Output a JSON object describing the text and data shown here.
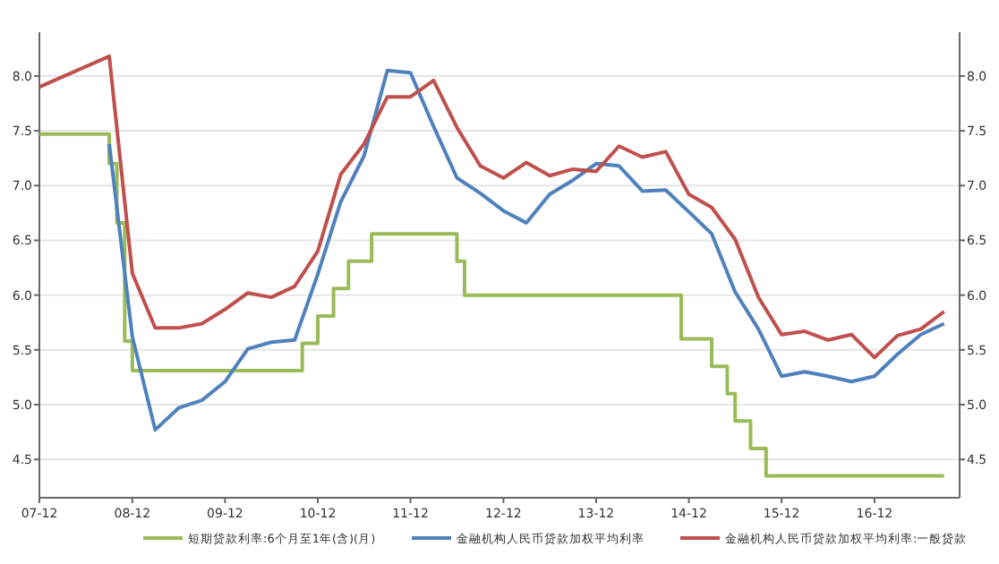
{
  "chart_data": {
    "type": "line",
    "x": [
      "2007-12",
      "2008-09",
      "2008-10",
      "2008-11",
      "2008-12",
      "2010-10",
      "2010-12",
      "2011-02",
      "2011-04",
      "2011-07",
      "2012-06",
      "2012-07",
      "2014-11",
      "2015-03",
      "2015-05",
      "2015-06",
      "2015-08",
      "2015-10",
      "2017-09"
    ],
    "series": [
      {
        "name": "短期贷款利率:6个月至1年(含)(月)",
        "color": "#9bbb59",
        "type": "step",
        "values": [
          7.47,
          7.2,
          6.66,
          5.58,
          5.31,
          5.56,
          5.81,
          6.06,
          6.31,
          6.56,
          6.31,
          6.0,
          5.6,
          5.35,
          5.1,
          4.85,
          4.6,
          4.35,
          4.35
        ]
      },
      {
        "name": "金融机构人民币贷款加权平均利率",
        "color": "#4f81bd",
        "x": [
          "2008-09",
          "2008-12",
          "2009-03",
          "2009-06",
          "2009-09",
          "2009-12",
          "2010-03",
          "2010-06",
          "2010-09",
          "2010-12",
          "2011-03",
          "2011-06",
          "2011-09",
          "2011-12",
          "2012-03",
          "2012-06",
          "2012-09",
          "2012-12",
          "2013-03",
          "2013-06",
          "2013-09",
          "2013-12",
          "2014-03",
          "2014-06",
          "2014-09",
          "2014-12",
          "2015-03",
          "2015-06",
          "2015-09",
          "2015-12",
          "2016-03",
          "2016-06",
          "2016-09",
          "2016-12",
          "2017-03",
          "2017-06",
          "2017-09"
        ],
        "values": [
          7.38,
          5.62,
          4.77,
          4.97,
          5.04,
          5.21,
          5.51,
          5.57,
          5.59,
          6.19,
          6.85,
          7.27,
          8.05,
          8.03,
          7.54,
          7.07,
          6.93,
          6.77,
          6.66,
          6.92,
          7.05,
          7.2,
          7.18,
          6.95,
          6.96,
          6.76,
          6.56,
          6.03,
          5.69,
          5.26,
          5.3,
          5.26,
          5.21,
          5.26,
          5.46,
          5.64,
          5.74
        ]
      },
      {
        "name": "金融机构人民币贷款加权平均利率:一般贷款",
        "color": "#c0504d",
        "x": [
          "2007-12",
          "2008-09",
          "2008-12",
          "2009-03",
          "2009-06",
          "2009-09",
          "2009-12",
          "2010-03",
          "2010-06",
          "2010-09",
          "2010-12",
          "2011-03",
          "2011-06",
          "2011-09",
          "2011-12",
          "2012-03",
          "2012-06",
          "2012-09",
          "2012-12",
          "2013-03",
          "2013-06",
          "2013-09",
          "2013-12",
          "2014-03",
          "2014-06",
          "2014-09",
          "2014-12",
          "2015-03",
          "2015-06",
          "2015-09",
          "2015-12",
          "2016-03",
          "2016-06",
          "2016-09",
          "2016-12",
          "2017-03",
          "2017-06",
          "2017-09"
        ],
        "values": [
          7.9,
          8.18,
          6.2,
          5.7,
          5.7,
          5.74,
          5.87,
          6.02,
          5.98,
          6.08,
          6.4,
          7.1,
          7.38,
          7.81,
          7.81,
          7.96,
          7.53,
          7.18,
          7.07,
          7.21,
          7.09,
          7.15,
          7.13,
          7.36,
          7.26,
          7.31,
          6.92,
          6.8,
          6.51,
          5.98,
          5.64,
          5.67,
          5.59,
          5.64,
          5.43,
          5.63,
          5.69,
          5.85
        ]
      }
    ],
    "xlim": [
      "2007-12",
      "2017-11"
    ],
    "xticks": [
      {
        "value": "2007-12",
        "label": "07-12"
      },
      {
        "value": "2008-12",
        "label": "08-12"
      },
      {
        "value": "2009-12",
        "label": "09-12"
      },
      {
        "value": "2010-12",
        "label": "10-12"
      },
      {
        "value": "2011-12",
        "label": "11-12"
      },
      {
        "value": "2012-12",
        "label": "12-12"
      },
      {
        "value": "2013-12",
        "label": "13-12"
      },
      {
        "value": "2014-12",
        "label": "14-12"
      },
      {
        "value": "2015-12",
        "label": "15-12"
      },
      {
        "value": "2016-12",
        "label": "16-12"
      }
    ],
    "ylim": [
      4.15,
      8.4
    ],
    "yticks": [
      {
        "value": 4.5,
        "label": "4.5"
      },
      {
        "value": 5,
        "label": "5.0"
      },
      {
        "value": 5.5,
        "label": "5.5"
      },
      {
        "value": 6,
        "label": "6.0"
      },
      {
        "value": 6.5,
        "label": "6.5"
      },
      {
        "value": 7,
        "label": "7.0"
      },
      {
        "value": 7.5,
        "label": "7.5"
      },
      {
        "value": 8,
        "label": "8.0"
      }
    ],
    "y2lim": [
      4.15,
      8.4
    ],
    "y2ticks": [
      {
        "value": 4.5,
        "label": "4.5"
      },
      {
        "value": 5,
        "label": "5.0"
      },
      {
        "value": 5.5,
        "label": "5.5"
      },
      {
        "value": 6,
        "label": "6.0"
      },
      {
        "value": 6.5,
        "label": "6.5"
      },
      {
        "value": 7,
        "label": "7.0"
      },
      {
        "value": 7.5,
        "label": "7.5"
      },
      {
        "value": 8,
        "label": "8.0"
      }
    ],
    "grid": "y",
    "legend": "bottom",
    "marker": "none",
    "line_style": "solid"
  }
}
